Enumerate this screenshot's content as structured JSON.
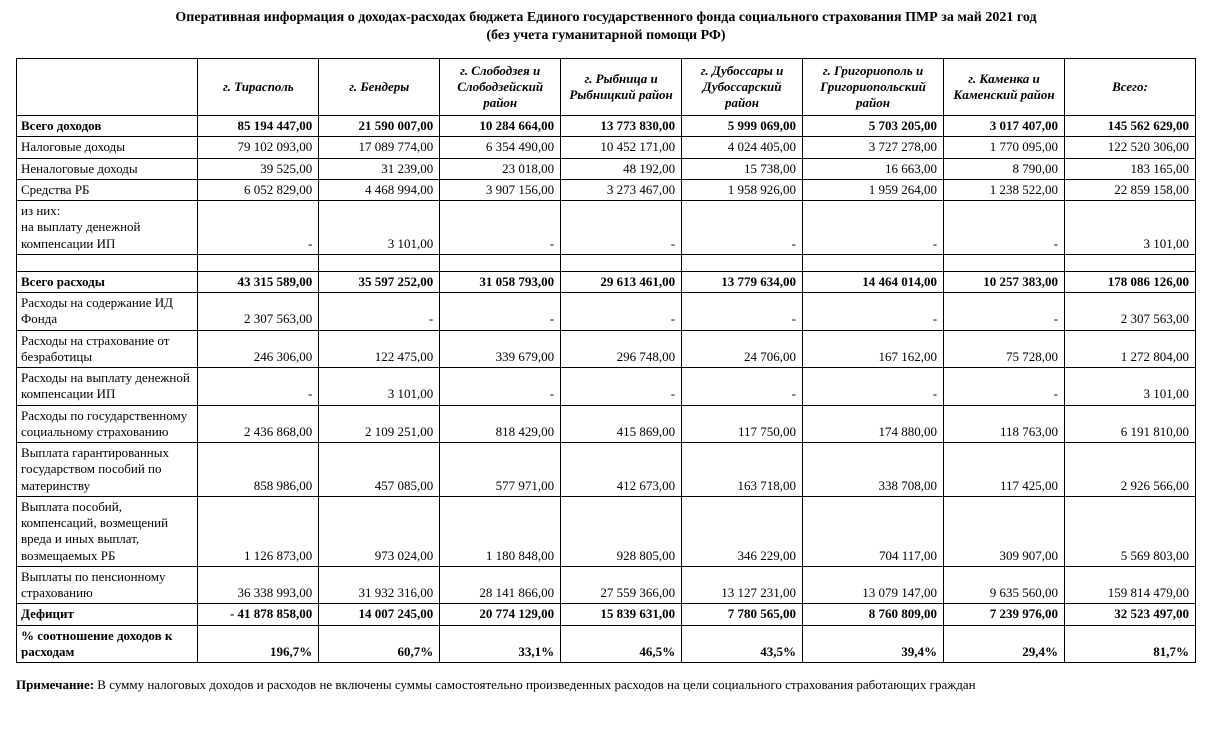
{
  "title": "Оперативная информация о доходах-расходах бюджета Единого государственного фонда социального страхования  ПМР за май  2021 год",
  "subtitle": "(без учета гуманитарной помощи РФ)",
  "columns": [
    "г. Тирасполь",
    "г. Бендеры",
    "г. Слободзея и Слободзейский район",
    "г. Рыбница и Рыбницкий район",
    "г. Дубоссары и Дубоссарский район",
    "г. Григориополь и Григориопольский район",
    "г. Каменка и Каменский район",
    "Всего:"
  ],
  "rows": [
    {
      "label": "Всего доходов",
      "bold": true,
      "cells": [
        "85 194 447,00",
        "21 590 007,00",
        "10 284 664,00",
        "13 773 830,00",
        "5 999 069,00",
        "5 703 205,00",
        "3 017 407,00",
        "145 562 629,00"
      ]
    },
    {
      "label": "Налоговые доходы",
      "cells": [
        "79 102 093,00",
        "17 089 774,00",
        "6 354 490,00",
        "10 452 171,00",
        "4 024 405,00",
        "3 727 278,00",
        "1 770 095,00",
        "122 520 306,00"
      ]
    },
    {
      "label": "Неналоговые доходы",
      "cells": [
        "39 525,00",
        "31 239,00",
        "23 018,00",
        "48 192,00",
        "15 738,00",
        "16 663,00",
        "8 790,00",
        "183 165,00"
      ]
    },
    {
      "label": "Средства РБ",
      "cells": [
        "6 052 829,00",
        "4 468 994,00",
        "3 907 156,00",
        "3 273 467,00",
        "1 958 926,00",
        "1 959 264,00",
        "1 238 522,00",
        "22 859 158,00"
      ]
    },
    {
      "label": " из них:\nна выплату денежной компенсации ИП",
      "cells": [
        "-",
        "3 101,00",
        "-",
        "-",
        "-",
        "-",
        "-",
        "3 101,00"
      ]
    },
    {
      "spacer": true
    },
    {
      "label": "Всего расходы",
      "bold": true,
      "cells": [
        "43 315 589,00",
        "35 597 252,00",
        "31 058 793,00",
        "29 613 461,00",
        "13 779 634,00",
        "14 464 014,00",
        "10 257 383,00",
        "178 086 126,00"
      ]
    },
    {
      "label": "Расходы на содержание ИД Фонда",
      "cells": [
        "2 307 563,00",
        "-",
        "-",
        "-",
        "-",
        "-",
        "-",
        "2 307 563,00"
      ]
    },
    {
      "label": "Расходы на страхование от безработицы",
      "cells": [
        "246 306,00",
        "122 475,00",
        "339 679,00",
        "296 748,00",
        "24 706,00",
        "167 162,00",
        "75 728,00",
        "1 272 804,00"
      ]
    },
    {
      "label": "Расходы  на выплату денежной компенсации ИП",
      "cells": [
        "-",
        "3 101,00",
        "-",
        "-",
        "-",
        "-",
        "-",
        "3 101,00"
      ]
    },
    {
      "label": "Расходы по государственному социальному страхованию",
      "cells": [
        "2 436 868,00",
        "2 109 251,00",
        "818 429,00",
        "415 869,00",
        "117 750,00",
        "174 880,00",
        "118 763,00",
        "6 191 810,00"
      ]
    },
    {
      "label": "Выплата гарантированных государством пособий по материнству",
      "cells": [
        "858 986,00",
        "457 085,00",
        "577 971,00",
        "412 673,00",
        "163 718,00",
        "338 708,00",
        "117 425,00",
        "2 926 566,00"
      ]
    },
    {
      "label": "Выплата пособий, компенсаций, возмещений вреда и иных выплат, возмещаемых РБ",
      "cells": [
        "1 126 873,00",
        "973 024,00",
        "1 180 848,00",
        "928 805,00",
        "346 229,00",
        "704 117,00",
        "309 907,00",
        "5 569 803,00"
      ]
    },
    {
      "label": "Выплаты по пенсионному страхованию",
      "cells": [
        "36 338 993,00",
        "31 932 316,00",
        "28 141 866,00",
        "27 559 366,00",
        "13 127 231,00",
        "13 079 147,00",
        "9 635 560,00",
        "159 814 479,00"
      ]
    },
    {
      "label": "Дефицит",
      "bold": true,
      "cells": [
        "-  41 878 858,00",
        "14 007 245,00",
        "20 774 129,00",
        "15 839 631,00",
        "7 780 565,00",
        "8 760 809,00",
        "7 239 976,00",
        "32 523 497,00"
      ]
    },
    {
      "label": "% соотношение доходов к расходам",
      "bold": true,
      "cells": [
        "196,7%",
        "60,7%",
        "33,1%",
        "46,5%",
        "43,5%",
        "39,4%",
        "29,4%",
        "81,7%"
      ]
    }
  ],
  "footnote_label": "Примечание:",
  "footnote_text": " В сумму налоговых доходов и расходов не включены суммы самостоятельно произведенных расходов на цели социального страхования работающих граждан"
}
